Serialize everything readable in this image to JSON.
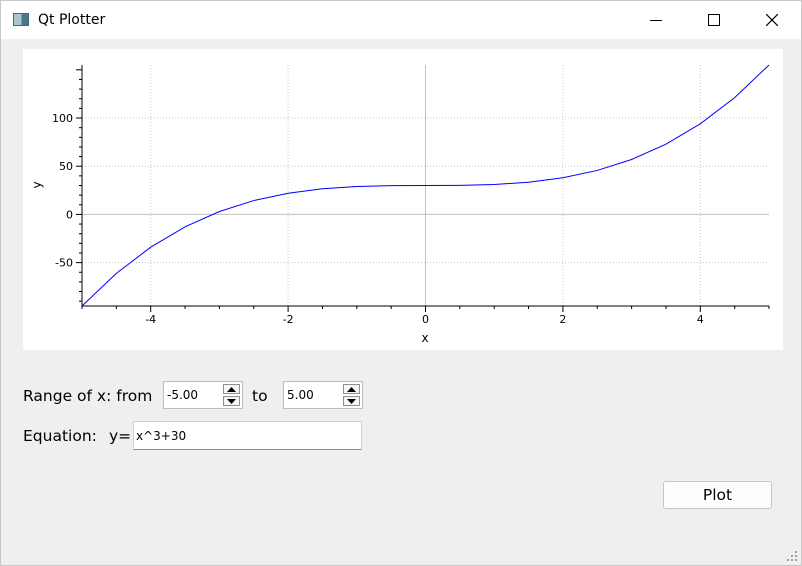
{
  "window": {
    "title": "Qt Plotter",
    "controls": {
      "minimize": "minimize-icon",
      "maximize": "maximize-icon",
      "close": "close-icon"
    }
  },
  "chart_data": {
    "type": "line",
    "function": "x^3+30",
    "xlabel": "x",
    "ylabel": "y",
    "xlim": [
      -5,
      5
    ],
    "ylim": [
      -95,
      155
    ],
    "x_ticks": [
      -4,
      -2,
      0,
      2,
      4
    ],
    "y_ticks": [
      -50,
      0,
      50,
      100
    ],
    "grid": true,
    "line_color": "#0000ff",
    "series": [
      {
        "x": [
          -5,
          -4.5,
          -4,
          -3.5,
          -3,
          -2.5,
          -2,
          -1.5,
          -1,
          -0.5,
          0,
          0.5,
          1,
          1.5,
          2,
          2.5,
          3,
          3.5,
          4,
          4.5,
          5
        ],
        "values": [
          -95,
          -61.13,
          -34,
          -12.88,
          3,
          14.38,
          22,
          26.63,
          29,
          29.88,
          30,
          30.13,
          31,
          33.38,
          38,
          45.63,
          57,
          72.88,
          94,
          121.13,
          155
        ]
      }
    ]
  },
  "controls": {
    "range_label": "Range of x: from",
    "from_value": "-5.00",
    "to_label": "to",
    "to_value": "5.00",
    "equation_label": "Equation:",
    "y_label": "y=",
    "equation_value": "x^3+30",
    "plot_button": "Plot"
  }
}
